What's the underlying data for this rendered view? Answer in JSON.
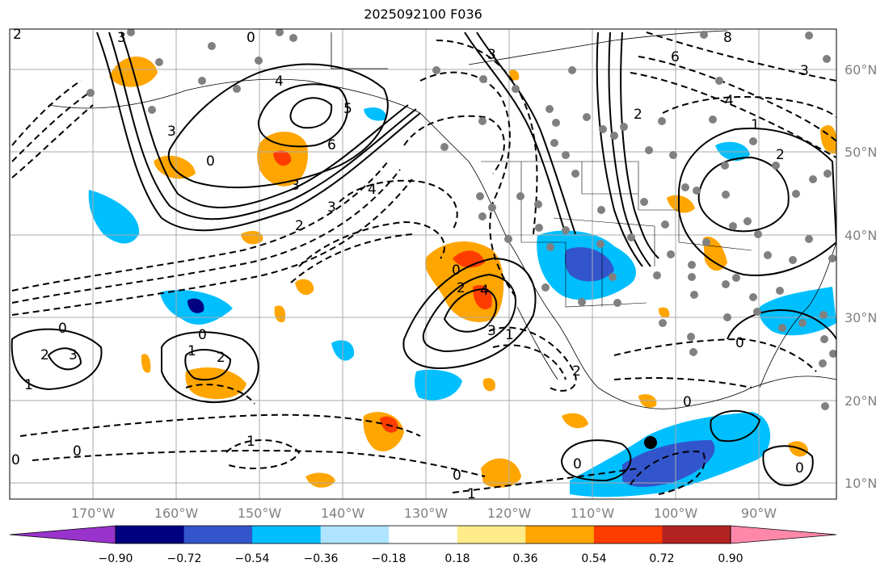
{
  "title": "2025092100 F036",
  "lat_labels": [
    "60°N",
    "50°N",
    "40°N",
    "30°N",
    "20°N",
    "10°N"
  ],
  "lon_labels": [
    "170°W",
    "160°W",
    "150°W",
    "140°W",
    "130°W",
    "120°W",
    "110°W",
    "100°W",
    "90°W"
  ],
  "colorbar": {
    "ticks": [
      "−0.90",
      "−0.72",
      "−0.54",
      "−0.36",
      "−0.18",
      "0.18",
      "0.36",
      "0.54",
      "0.72",
      "0.90"
    ],
    "colors": [
      "#9933cc",
      "#000080",
      "#3355cc",
      "#00bfff",
      "#aee4ff",
      "#ffffff",
      "#ffeb8a",
      "#ffa500",
      "#ff3c00",
      "#b22222",
      "#ff88aa"
    ]
  },
  "contour_labels": [
    "0",
    "2",
    "3",
    "4",
    "6",
    "5",
    "3",
    "0",
    "4",
    "3",
    "2",
    "0",
    "1",
    "2",
    "3",
    "1",
    "2",
    "3",
    "0",
    "2",
    "4",
    "3",
    "0",
    "1",
    "0",
    "1",
    "0",
    "0",
    "2",
    "3",
    "0",
    "1",
    "0",
    "0",
    "2",
    "6",
    "8",
    "4",
    "3",
    "2",
    "1",
    "0"
  ],
  "colors": {
    "axis_label": "#808080",
    "grid": "#aaaaaa"
  }
}
